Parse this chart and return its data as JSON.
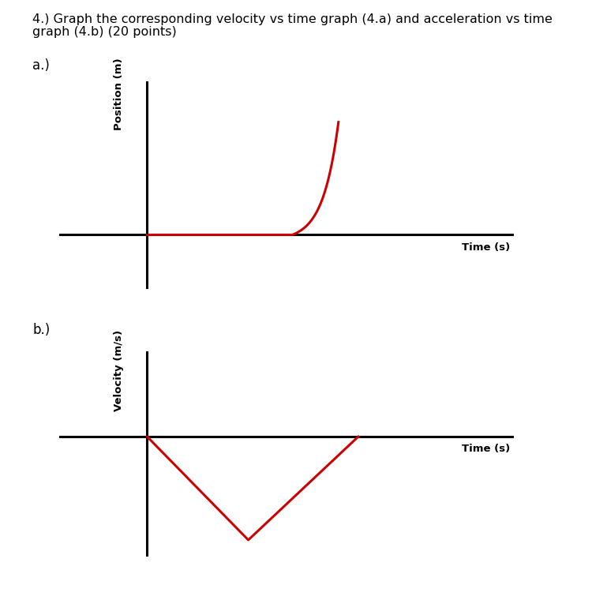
{
  "title_line1": "4.) Graph the corresponding velocity vs time graph (4.a) and acceleration vs time",
  "title_line2": "graph (4.b) (20 points)",
  "title_fontsize": 11.5,
  "background_color": "#ffffff",
  "label_a": "a.)",
  "label_b": "b.)",
  "label_fontsize": 12,
  "ylabel_a": "Position (m)",
  "ylabel_b": "Velocity (m/s)",
  "xlabel_a": "Time (s)",
  "xlabel_b": "Time (s)",
  "axis_label_fontsize": 9.5,
  "curve_color": "#cc0000",
  "axis_color": "#000000",
  "curve_linewidth": 2.2,
  "axis_linewidth": 2.2
}
